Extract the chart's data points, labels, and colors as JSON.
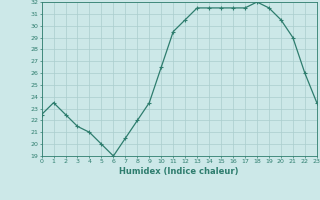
{
  "x": [
    0,
    1,
    2,
    3,
    4,
    5,
    6,
    7,
    8,
    9,
    10,
    11,
    12,
    13,
    14,
    15,
    16,
    17,
    18,
    19,
    20,
    21,
    22,
    23
  ],
  "y": [
    22.5,
    23.5,
    22.5,
    21.5,
    21.0,
    20.0,
    19.0,
    20.5,
    22.0,
    23.5,
    26.5,
    29.5,
    30.5,
    31.5,
    31.5,
    31.5,
    31.5,
    31.5,
    32.0,
    31.5,
    30.5,
    29.0,
    26.0,
    23.5
  ],
  "xlabel": "Humidex (Indice chaleur)",
  "ylim": [
    19,
    32
  ],
  "xlim": [
    0,
    23
  ],
  "yticks": [
    19,
    20,
    21,
    22,
    23,
    24,
    25,
    26,
    27,
    28,
    29,
    30,
    31,
    32
  ],
  "xticks": [
    0,
    1,
    2,
    3,
    4,
    5,
    6,
    7,
    8,
    9,
    10,
    11,
    12,
    13,
    14,
    15,
    16,
    17,
    18,
    19,
    20,
    21,
    22,
    23
  ],
  "line_color": "#2e7d6e",
  "bg_color": "#cce8e8",
  "grid_color": "#aacece",
  "marker": "+"
}
